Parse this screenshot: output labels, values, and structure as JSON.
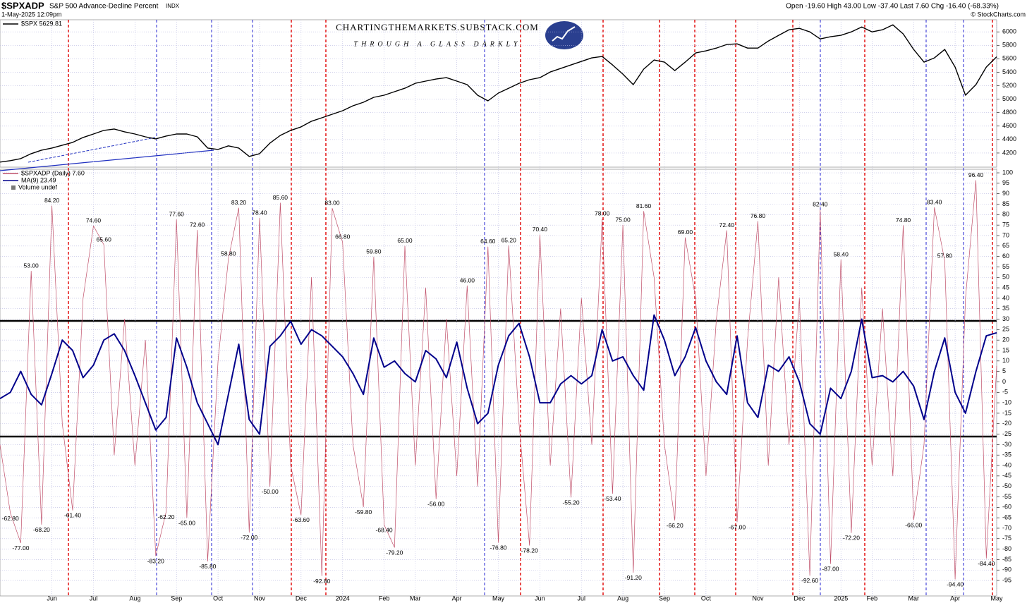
{
  "header": {
    "symbol": "$SPXADP",
    "name": "S&P 500 Advance-Decline Percent",
    "exchange": "INDX",
    "datetime": "1-May-2025 12:09pm",
    "quote": "Open -19.60  High 43.00  Low -37.40  Last 7.60  Chg -16.40 (-68.33%)",
    "credit": "© StockCharts.com"
  },
  "watermark": {
    "site": "CHARTINGTHEMARKETS.SUBSTACK.COM",
    "tagline": "THROUGH A GLASS DARKLY"
  },
  "chart_data": {
    "type": "line",
    "categories": [
      null,
      null,
      null,
      null,
      null,
      "Jun",
      null,
      null,
      null,
      "Jul",
      null,
      null,
      null,
      "Aug",
      null,
      null,
      null,
      "Sep",
      null,
      null,
      null,
      "Oct",
      null,
      null,
      null,
      "Nov",
      null,
      null,
      null,
      "Dec",
      null,
      null,
      null,
      "2024",
      null,
      null,
      null,
      "Feb",
      null,
      null,
      "Mar",
      null,
      null,
      null,
      "Apr",
      null,
      null,
      null,
      "May",
      null,
      null,
      null,
      "Jun",
      null,
      null,
      null,
      "Jul",
      null,
      null,
      null,
      "Aug",
      null,
      null,
      null,
      "Sep",
      null,
      null,
      null,
      "Oct",
      null,
      null,
      null,
      null,
      "Nov",
      null,
      null,
      null,
      "Dec",
      null,
      null,
      null,
      "2025",
      null,
      null,
      "Feb",
      null,
      null,
      null,
      "Mar",
      null,
      null,
      null,
      "Apr",
      null,
      null,
      null,
      "May"
    ],
    "panels": [
      {
        "ylim": [
          3990,
          6180
        ],
        "yticks": [
          4200,
          4400,
          4600,
          4800,
          5000,
          5200,
          5400,
          5600,
          5800,
          6000
        ],
        "grid": true,
        "series": [
          {
            "name": "$SPX 5629.81",
            "color": "#000000",
            "values": [
              4065,
              4086,
              4117,
              4190,
              4243,
              4274,
              4316,
              4358,
              4431,
              4483,
              4536,
              4557,
              4515,
              4483,
              4441,
              4410,
              4452,
              4483,
              4483,
              4441,
              4274,
              4253,
              4306,
              4274,
              4149,
              4190,
              4347,
              4462,
              4536,
              4588,
              4672,
              4724,
              4776,
              4828,
              4902,
              4954,
              5027,
              5059,
              5111,
              5163,
              5236,
              5268,
              5299,
              5320,
              5268,
              5216,
              5059,
              4975,
              5090,
              5163,
              5236,
              5289,
              5320,
              5404,
              5456,
              5508,
              5561,
              5613,
              5634,
              5508,
              5372,
              5216,
              5446,
              5582,
              5550,
              5425,
              5550,
              5686,
              5718,
              5759,
              5812,
              5822,
              5759,
              5759,
              5864,
              5948,
              6031,
              6052,
              6000,
              5895,
              5927,
              5948,
              6000,
              6073,
              6000,
              6031,
              6105,
              5969,
              5739,
              5550,
              5613,
              5739,
              5477,
              5059,
              5216,
              5477,
              5629.81
            ]
          }
        ]
      },
      {
        "ylim": [
          -102.4,
          101.7
        ],
        "yticks": [
          100,
          95,
          90,
          85,
          80,
          75,
          70,
          65,
          60,
          55,
          50,
          45,
          40,
          35,
          30,
          25,
          20,
          15,
          10,
          5,
          0,
          -5,
          -10,
          -15,
          -20,
          -25,
          -30,
          -35,
          -40,
          -45,
          -50,
          -55,
          -60,
          -65,
          -70,
          -75,
          -80,
          -85,
          -90,
          -95
        ],
        "grid": true,
        "legend_extra": "Volume undef",
        "series": [
          {
            "name": "$SPXADP (Daily) 7.60",
            "color": "#c0506a",
            "values": [
              -30,
              -62.8,
              -77,
              53,
              -68.2,
              84.2,
              -20,
              -61.4,
              40,
              74.6,
              65.6,
              -35,
              30,
              -40,
              20,
              -83.2,
              -62.2,
              77.6,
              -65,
              72.6,
              -85.8,
              10,
              58.8,
              83.2,
              -72,
              78.4,
              -50,
              85.6,
              -40,
              -63.6,
              50,
              -92.8,
              83,
              66.8,
              -30,
              -59.8,
              59.8,
              -68.4,
              -79.2,
              65,
              -40,
              45,
              -56,
              30,
              -45,
              46,
              -50,
              64.6,
              -76.8,
              65.2,
              -20,
              -78.2,
              70.4,
              -40,
              35,
              -55.2,
              40,
              -30,
              78,
              -53.4,
              75,
              -91.2,
              81.6,
              50,
              -30,
              -66.2,
              69,
              40,
              -45,
              30,
              72.4,
              -67,
              20,
              76.8,
              -40,
              50,
              -30,
              40,
              -92.6,
              82.4,
              -87,
              58.4,
              -72.2,
              45,
              -40,
              35,
              -45,
              74.8,
              -66,
              -30,
              83.4,
              57.8,
              -94.4,
              40,
              96.4,
              -84.4,
              7.6
            ],
            "value_labels": [
              null,
              "-62.80",
              "-77.00",
              "53.00",
              "-68.20",
              "84.20",
              null,
              "-61.40",
              null,
              "74.60",
              "65.60",
              null,
              null,
              null,
              null,
              "-83.20",
              "-62.20",
              "77.60",
              "-65.00",
              "72.60",
              "-85.80",
              null,
              "58.80",
              "83.20",
              "-72.00",
              "78.40",
              "-50.00",
              "85.60",
              null,
              "-63.60",
              null,
              "-92.80",
              "83.00",
              "66.80",
              null,
              "-59.80",
              "59.80",
              "-68.40",
              "-79.20",
              "65.00",
              null,
              null,
              "-56.00",
              null,
              null,
              "46.00",
              null,
              "64.60",
              "-76.80",
              "65.20",
              null,
              "-78.20",
              "70.40",
              null,
              null,
              "-55.20",
              null,
              null,
              "78.00",
              "-53.40",
              "75.00",
              "-91.20",
              "81.60",
              null,
              null,
              "-66.20",
              "69.00",
              null,
              null,
              null,
              "72.40",
              "-67.00",
              null,
              "76.80",
              null,
              null,
              null,
              null,
              "-92.60",
              "82.40",
              "-87.00",
              "58.40",
              "-72.20",
              null,
              null,
              null,
              null,
              "74.80",
              "-66.00",
              null,
              "83.40",
              "57.80",
              "-94.40",
              null,
              "96.40",
              "-84.40",
              null
            ]
          },
          {
            "name": "MA(9) 23.49",
            "color": "#00008b",
            "values": [
              -8,
              -5,
              5,
              -6,
              -11,
              4,
              20,
              15,
              2,
              8,
              20,
              23,
              15,
              3,
              -10,
              -23,
              -17,
              21,
              7,
              -10,
              -20,
              -30,
              -6,
              18,
              -18,
              -25,
              17,
              22,
              29,
              18,
              25,
              22,
              17,
              12,
              4,
              -6,
              21,
              7,
              10,
              4,
              0,
              15,
              11,
              2,
              19,
              -3,
              -20,
              -15,
              8,
              22,
              28,
              12,
              -10,
              -10,
              -1,
              3,
              -1,
              3,
              25,
              10,
              12,
              3,
              -4,
              32,
              20,
              3,
              12,
              26,
              10,
              0,
              -6,
              22,
              -10,
              -17,
              8,
              5,
              12,
              0,
              -20,
              -25,
              -3,
              -8,
              5,
              30,
              2,
              3,
              0,
              5,
              -2,
              -18,
              5,
              21,
              -5,
              -15,
              5,
              22,
              23.49
            ]
          }
        ]
      }
    ]
  }
}
